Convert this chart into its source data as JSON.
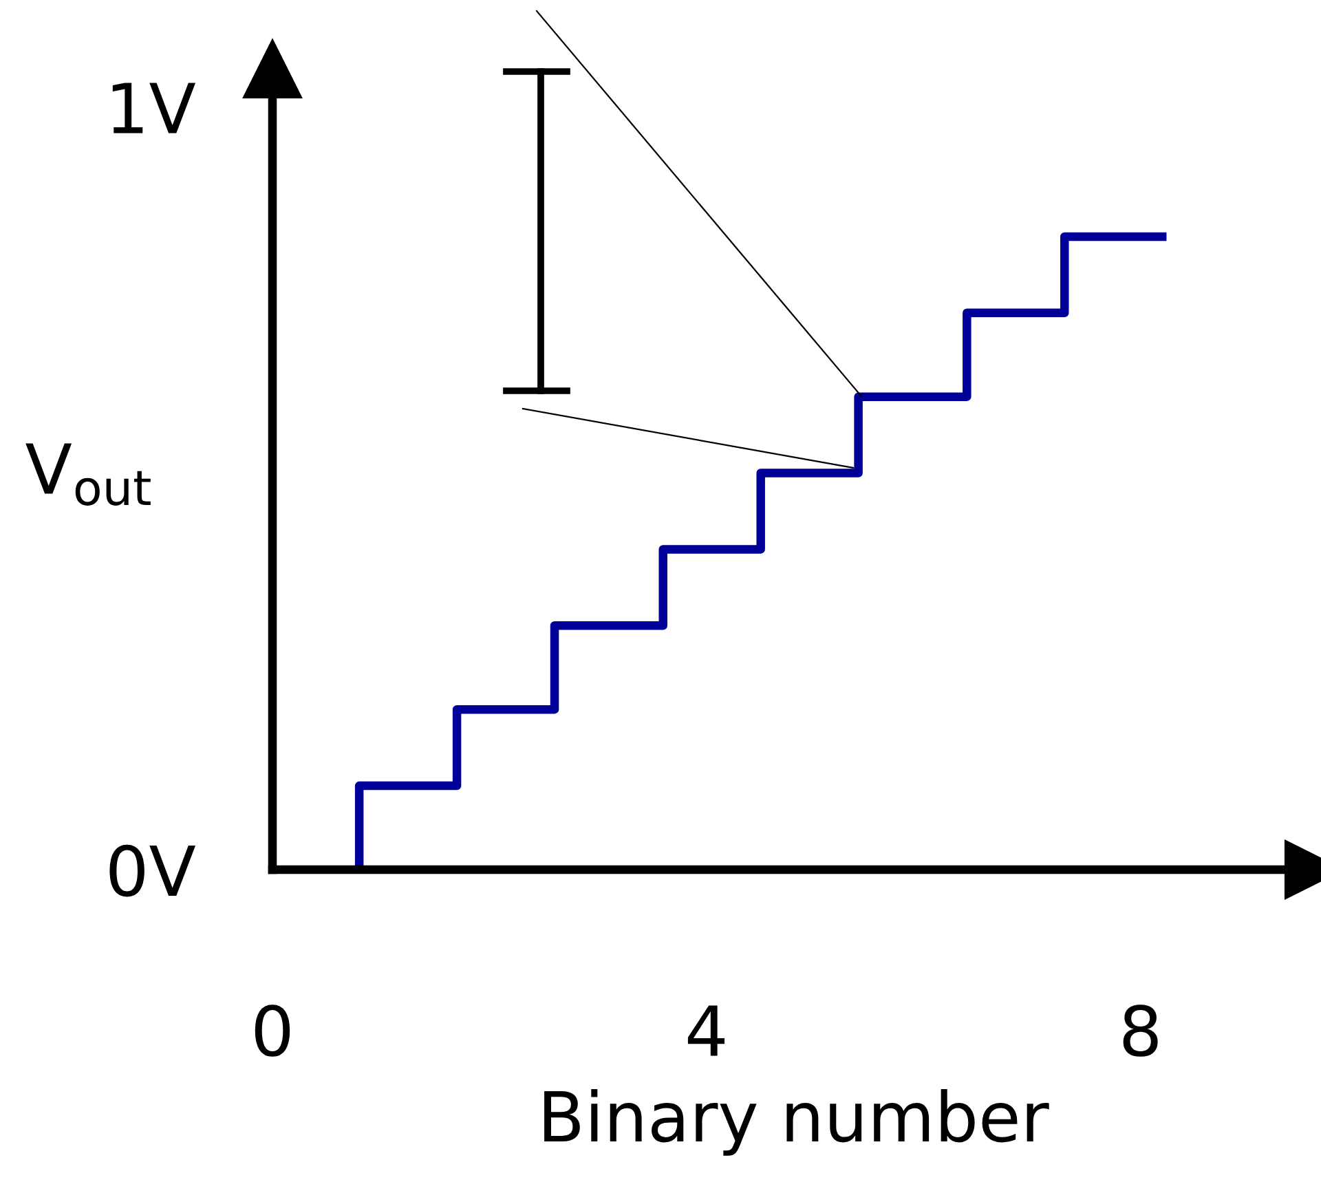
{
  "chart_data": {
    "type": "step",
    "xlabel": "Binary number",
    "ylabel": "V$_{out}$",
    "x": [
      0.8,
      0.8,
      1.7,
      2.6,
      3.6,
      4.5,
      5.4,
      6.4,
      7.3,
      8.2
    ],
    "series": [
      {
        "color": "#000099",
        "values": [
          0,
          0.11,
          0.21,
          0.32,
          0.42,
          0.52,
          0.62,
          0.73,
          0.83,
          0.83
        ]
      }
    ],
    "xlim": [
      0,
      9.6
    ],
    "ylim": [
      0,
      1.05
    ],
    "xticks": [
      0,
      4,
      8
    ],
    "yticks": [
      {
        "value": 0,
        "label": "0V"
      },
      {
        "value": 1,
        "label": "1V"
      }
    ],
    "marker": "none",
    "line_style": "solid"
  }
}
